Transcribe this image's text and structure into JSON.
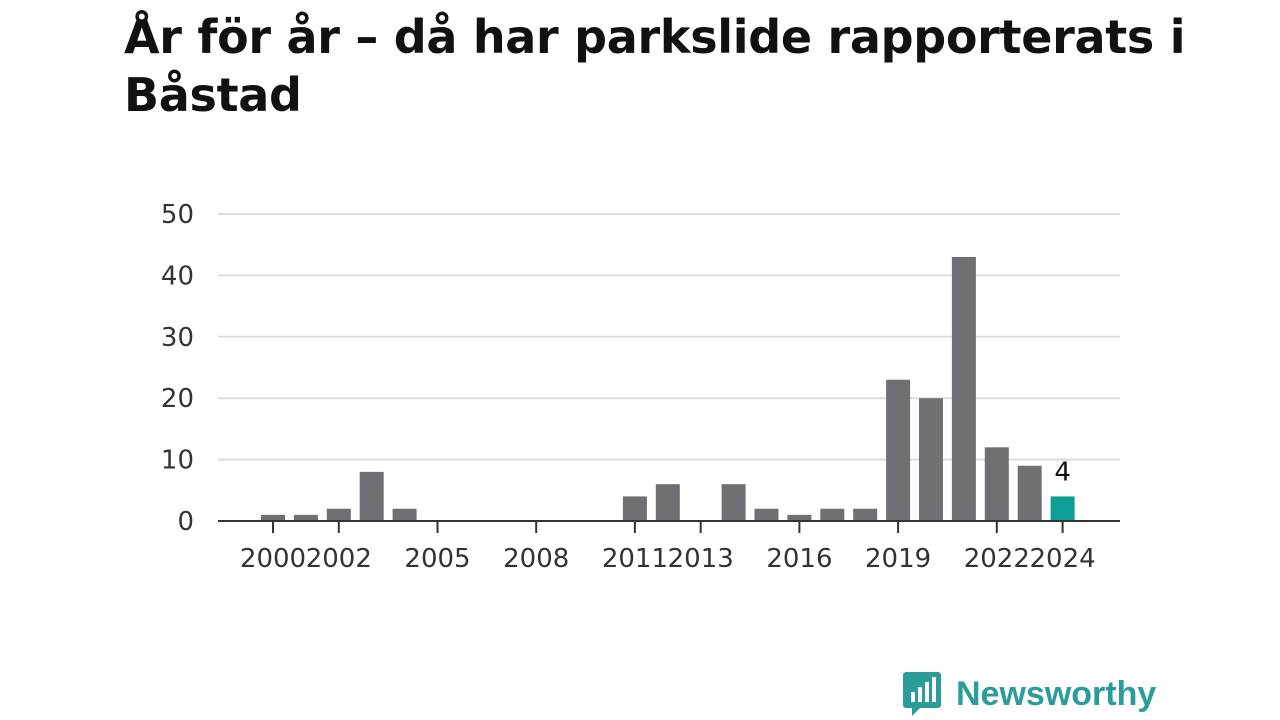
{
  "chart_data": {
    "type": "bar",
    "title": "År för år – då har parkslide rapporterats i Båstad",
    "xlabel": "",
    "ylabel": "",
    "ylim": [
      0,
      50
    ],
    "yticks": [
      0,
      10,
      20,
      30,
      40,
      50
    ],
    "xticks": [
      "2000",
      "2002",
      "2005",
      "2008",
      "2011",
      "2013",
      "2016",
      "2019",
      "2022",
      "2024"
    ],
    "grid": true,
    "legend": "none",
    "categories": [
      "2000",
      "2001",
      "2002",
      "2003",
      "2004",
      "2005",
      "2006",
      "2007",
      "2008",
      "2009",
      "2010",
      "2011",
      "2012",
      "2013",
      "2014",
      "2015",
      "2016",
      "2017",
      "2018",
      "2019",
      "2020",
      "2021",
      "2022",
      "2023",
      "2024"
    ],
    "values": [
      1,
      1,
      2,
      8,
      2,
      0,
      0,
      0,
      0,
      0,
      0,
      4,
      6,
      0,
      6,
      2,
      1,
      2,
      2,
      23,
      20,
      43,
      12,
      9,
      4
    ],
    "highlight": {
      "category": "2024",
      "label": "4"
    },
    "colors": {
      "bars": "#706f74",
      "highlight": "#0e9e95",
      "grid": "#dddddd",
      "axis": "#333333"
    }
  },
  "branding": {
    "name": "Newsworthy",
    "icon": "newsworthy-logo-icon",
    "color": "#2a9d9a"
  }
}
